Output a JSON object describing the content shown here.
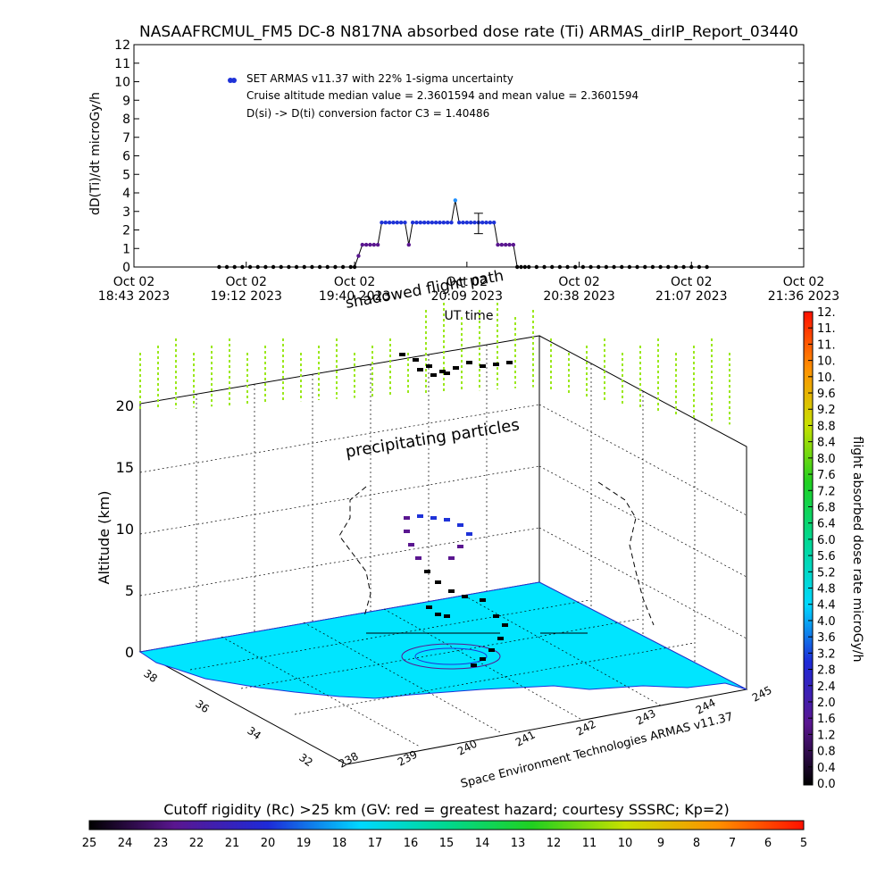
{
  "title": "NASAAFRCMUL_FM5 DC-8   N817NA absorbed dose rate (Ti) ARMAS_dirIP_Report_03440",
  "colors": {
    "background": "#ffffff",
    "axis": "#000000",
    "dose_series": "#1e32d8",
    "ground_fill": "#00e5ff",
    "precip_ticks": "#9be81c"
  },
  "chart_data": [
    {
      "type": "line",
      "ylabel": "dD(Ti)/dt microGy/h",
      "xlabel": "UT time",
      "ylim": [
        0,
        12
      ],
      "yticks": [
        "0",
        "1",
        "2",
        "3",
        "4",
        "5",
        "6",
        "7",
        "8",
        "9",
        "10",
        "11",
        "12"
      ],
      "xtick_labels": [
        {
          "l1": "Oct 02",
          "l2": "18:43 2023"
        },
        {
          "l1": "Oct 02",
          "l2": "19:12 2023"
        },
        {
          "l1": "Oct 02",
          "l2": "19:40 2023"
        },
        {
          "l1": "Oct 02",
          "l2": "20:09 2023"
        },
        {
          "l1": "Oct 02",
          "l2": "20:38 2023"
        },
        {
          "l1": "Oct 02",
          "l2": "21:07 2023"
        },
        {
          "l1": "Oct 02",
          "l2": "21:36 2023"
        }
      ],
      "xticks_min": [
        0,
        29,
        57,
        86,
        115,
        144,
        173
      ],
      "legend": [
        "SET ARMAS v11.37 with 22% 1-sigma uncertainty",
        "Cruise altitude median value = 2.3601594 and mean value = 2.3601594",
        "D(si) -> D(ti) conversion factor C3 = 1.40486"
      ],
      "series": [
        {
          "x": [
            22,
            24,
            26,
            28,
            30,
            32,
            34,
            36,
            38,
            40,
            42,
            44,
            46,
            48,
            50,
            52,
            54,
            56,
            57,
            58,
            59,
            60,
            61,
            62,
            63,
            64,
            65,
            66,
            67,
            68,
            69,
            70,
            71,
            72,
            73,
            74,
            75,
            76,
            77,
            78,
            79,
            80,
            81,
            82,
            83,
            84,
            85,
            86,
            87,
            88,
            89,
            90,
            91,
            92,
            93,
            94,
            95,
            96,
            97,
            98,
            99,
            100,
            101,
            102,
            104,
            106,
            108,
            110,
            112,
            114,
            116,
            118,
            120,
            122,
            124,
            126,
            128,
            130,
            132,
            134,
            136,
            138,
            140,
            142,
            144,
            146,
            148
          ],
          "y": [
            0,
            0,
            0,
            0,
            0,
            0,
            0,
            0,
            0,
            0,
            0,
            0,
            0,
            0,
            0,
            0,
            0,
            0,
            0,
            0.6,
            1.2,
            1.2,
            1.2,
            1.2,
            1.2,
            2.4,
            2.4,
            2.4,
            2.4,
            2.4,
            2.4,
            2.4,
            1.2,
            2.4,
            2.4,
            2.4,
            2.4,
            2.4,
            2.4,
            2.4,
            2.4,
            2.4,
            2.4,
            2.4,
            3.6,
            2.4,
            2.4,
            2.4,
            2.4,
            2.4,
            2.4,
            2.4,
            2.4,
            2.4,
            2.4,
            1.2,
            1.2,
            1.2,
            1.2,
            1.2,
            0,
            0,
            0,
            0,
            0,
            0,
            0,
            0,
            0,
            0,
            0,
            0,
            0,
            0,
            0,
            0,
            0,
            0,
            0,
            0,
            0,
            0,
            0,
            0,
            0,
            0,
            0
          ]
        }
      ],
      "error_bar": {
        "x": 89,
        "low": 1.8,
        "high": 2.9
      }
    },
    {
      "type": "scatter",
      "ylabel": "Altitude (km)",
      "zticks": [
        "0",
        "5",
        "10",
        "15",
        "20"
      ],
      "lat_ticks": [
        "38",
        "36",
        "34",
        "32"
      ],
      "lon_ticks": [
        "238",
        "239",
        "240",
        "241",
        "242",
        "243",
        "244",
        "245"
      ],
      "credit": "Space Environment Technologies ARMAS v11.37",
      "annotation_precip": "precipitating particles",
      "annotation_shadow": "shadowed flight path"
    },
    {
      "type": "heatmap",
      "colorbar_label": "flight absorbed dose rate microGy/h",
      "colorbar_ticks": [
        "0.0",
        "0.4",
        "0.8",
        "1.2",
        "1.6",
        "2.0",
        "2.4",
        "2.8",
        "3.2",
        "3.6",
        "4.0",
        "4.4",
        "4.8",
        "5.2",
        "5.6",
        "6.0",
        "6.4",
        "6.8",
        "7.2",
        "7.6",
        "8.0",
        "8.4",
        "8.8",
        "9.2",
        "9.6",
        "10.",
        "10.",
        "11.",
        "11.",
        "12."
      ]
    },
    {
      "type": "heatmap",
      "colorbar_label": "Cutoff rigidity (Rc) >25 km (GV: red = greatest hazard; courtesy SSSRC; Kp=2)",
      "colorbar_ticks": [
        "25",
        "24",
        "23",
        "22",
        "21",
        "20",
        "19",
        "18",
        "17",
        "16",
        "15",
        "14",
        "13",
        "12",
        "11",
        "10",
        "9",
        "8",
        "7",
        "6",
        "5"
      ]
    }
  ]
}
